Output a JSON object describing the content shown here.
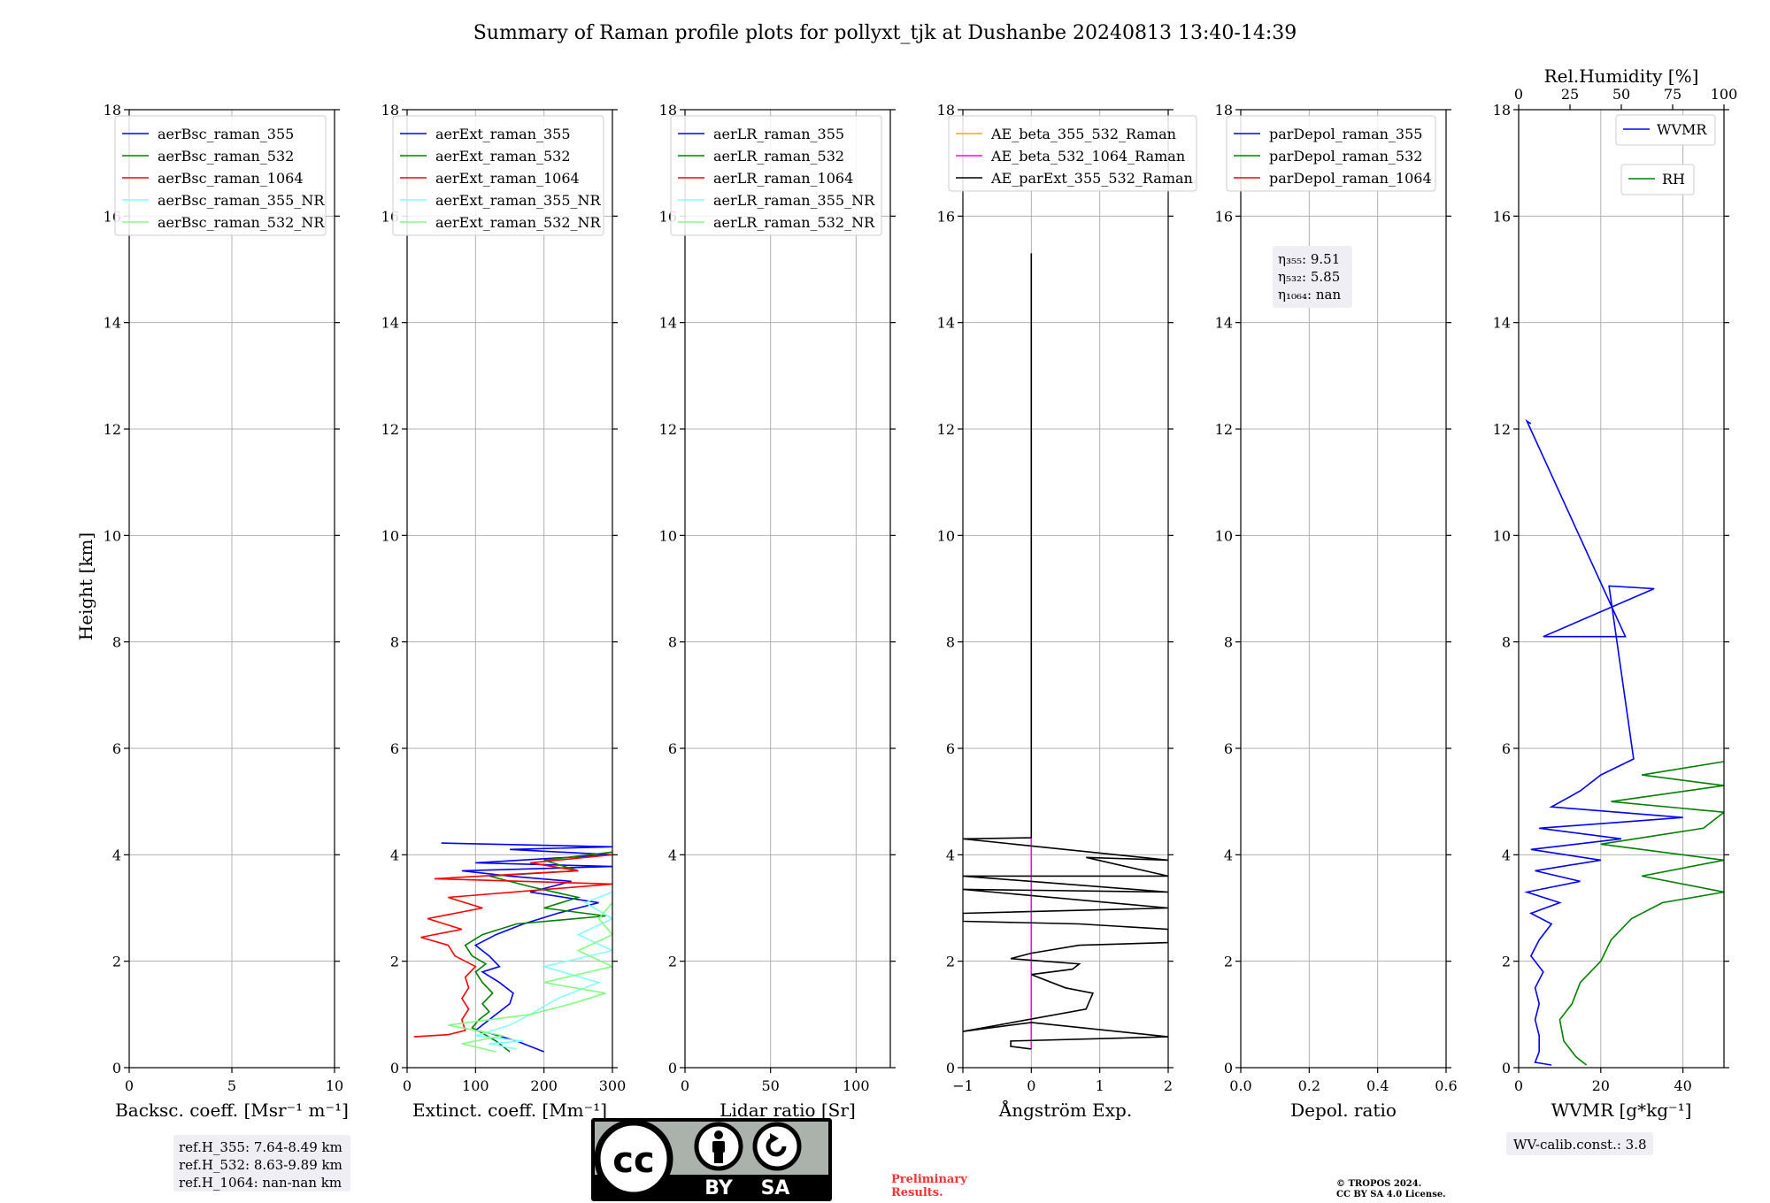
{
  "title": "Summary of Raman profile plots for pollyxt_tjk at Dushanbe 20240813 13:40-14:39",
  "shared_ylabel": "Height [km]",
  "colors": {
    "blue": "#0000ff",
    "green": "#008000",
    "red": "#ff0000",
    "cyan": "#80ffff",
    "lightgreen": "#80ff80",
    "orange": "#ffa500",
    "magenta": "#ff00ff",
    "black": "#000000",
    "grid": "#b0b0b0",
    "info_bg": "#eeeef4"
  },
  "chart_data": [
    {
      "type": "line",
      "id": "bsc",
      "xlabel": "Backsc. coeff. [Msr⁻¹ m⁻¹]",
      "ylabel": "Height [km]",
      "xlim": [
        0,
        10
      ],
      "ylim": [
        0,
        18
      ],
      "xticks": [
        0,
        5,
        10
      ],
      "xtick_labels": [
        "0",
        "5",
        "10"
      ],
      "yticks": [
        0,
        2,
        4,
        6,
        8,
        10,
        12,
        14,
        16,
        18
      ],
      "grid": true,
      "legend_position": "top-left",
      "series": [
        {
          "name": "aerBsc_raman_355",
          "color": "blue",
          "points": []
        },
        {
          "name": "aerBsc_raman_532",
          "color": "green",
          "points": []
        },
        {
          "name": "aerBsc_raman_1064",
          "color": "red",
          "points": []
        },
        {
          "name": "aerBsc_raman_355_NR",
          "color": "cyan",
          "points": []
        },
        {
          "name": "aerBsc_raman_532_NR",
          "color": "lightgreen",
          "points": []
        }
      ]
    },
    {
      "type": "line",
      "id": "ext",
      "xlabel": "Extinct. coeff. [Mm⁻¹]",
      "ylabel": "Height [km]",
      "xlim": [
        0,
        300
      ],
      "ylim": [
        0,
        18
      ],
      "xticks": [
        0,
        100,
        200,
        300
      ],
      "xtick_labels": [
        "0",
        "100",
        "200",
        "300"
      ],
      "yticks": [
        0,
        2,
        4,
        6,
        8,
        10,
        12,
        14,
        16,
        18
      ],
      "grid": true,
      "legend_position": "top-left",
      "series": [
        {
          "name": "aerExt_raman_355",
          "color": "blue",
          "points": [
            [
              200,
              0.3
            ],
            [
              160,
              0.5
            ],
            [
              120,
              0.65
            ],
            [
              100,
              0.7
            ],
            [
              115,
              0.85
            ],
            [
              130,
              1.0
            ],
            [
              150,
              1.2
            ],
            [
              155,
              1.4
            ],
            [
              135,
              1.6
            ],
            [
              110,
              1.8
            ],
            [
              135,
              1.9
            ],
            [
              120,
              2.1
            ],
            [
              100,
              2.3
            ],
            [
              130,
              2.5
            ],
            [
              170,
              2.7
            ],
            [
              220,
              2.9
            ],
            [
              280,
              3.1
            ],
            [
              180,
              3.3
            ],
            [
              240,
              3.5
            ],
            [
              150,
              3.6
            ],
            [
              80,
              3.7
            ],
            [
              300,
              3.78
            ],
            [
              100,
              3.85
            ],
            [
              300,
              4.0
            ],
            [
              150,
              4.1
            ],
            [
              300,
              4.15
            ],
            [
              50,
              4.22
            ]
          ]
        },
        {
          "name": "aerExt_raman_532",
          "color": "green",
          "points": [
            [
              150,
              0.3
            ],
            [
              130,
              0.5
            ],
            [
              110,
              0.65
            ],
            [
              95,
              0.75
            ],
            [
              105,
              0.9
            ],
            [
              120,
              1.05
            ],
            [
              110,
              1.2
            ],
            [
              125,
              1.4
            ],
            [
              110,
              1.6
            ],
            [
              100,
              1.8
            ],
            [
              115,
              1.95
            ],
            [
              95,
              2.1
            ],
            [
              85,
              2.3
            ],
            [
              110,
              2.5
            ],
            [
              160,
              2.7
            ],
            [
              290,
              2.85
            ],
            [
              200,
              3.0
            ],
            [
              250,
              3.2
            ],
            [
              180,
              3.4
            ],
            [
              120,
              3.6
            ],
            [
              250,
              3.7
            ],
            [
              200,
              3.9
            ],
            [
              300,
              4.05
            ]
          ]
        },
        {
          "name": "aerExt_raman_1064",
          "color": "red",
          "points": [
            [
              10,
              0.58
            ],
            [
              60,
              0.62
            ],
            [
              85,
              0.7
            ],
            [
              80,
              0.9
            ],
            [
              90,
              1.1
            ],
            [
              80,
              1.3
            ],
            [
              90,
              1.5
            ],
            [
              85,
              1.7
            ],
            [
              100,
              1.9
            ],
            [
              70,
              2.1
            ],
            [
              60,
              2.3
            ],
            [
              20,
              2.45
            ],
            [
              80,
              2.6
            ],
            [
              30,
              2.8
            ],
            [
              110,
              3.0
            ],
            [
              60,
              3.2
            ],
            [
              300,
              3.45
            ],
            [
              40,
              3.55
            ],
            [
              250,
              3.7
            ],
            [
              180,
              3.85
            ],
            [
              300,
              4.0
            ]
          ]
        },
        {
          "name": "aerExt_raman_355_NR",
          "color": "cyan",
          "points": [
            [
              160,
              0.35
            ],
            [
              120,
              0.45
            ],
            [
              170,
              0.5
            ],
            [
              100,
              0.6
            ],
            [
              150,
              0.8
            ],
            [
              180,
              1.0
            ],
            [
              220,
              1.3
            ],
            [
              280,
              1.6
            ],
            [
              200,
              1.9
            ],
            [
              300,
              2.2
            ],
            [
              250,
              2.5
            ],
            [
              300,
              2.8
            ],
            [
              260,
              3.1
            ],
            [
              300,
              3.3
            ]
          ]
        },
        {
          "name": "aerExt_raman_532_NR",
          "color": "lightgreen",
          "points": [
            [
              130,
              0.3
            ],
            [
              80,
              0.45
            ],
            [
              140,
              0.6
            ],
            [
              60,
              0.8
            ],
            [
              180,
              1.0
            ],
            [
              240,
              1.2
            ],
            [
              290,
              1.4
            ],
            [
              200,
              1.6
            ],
            [
              300,
              1.9
            ],
            [
              250,
              2.2
            ],
            [
              300,
              2.5
            ],
            [
              280,
              2.8
            ],
            [
              300,
              3.1
            ]
          ]
        }
      ]
    },
    {
      "type": "line",
      "id": "lr",
      "xlabel": "Lidar ratio [Sr]",
      "ylabel": "Height [km]",
      "xlim": [
        0,
        120
      ],
      "ylim": [
        0,
        18
      ],
      "xticks": [
        0,
        50,
        100
      ],
      "xtick_labels": [
        "0",
        "50",
        "100"
      ],
      "yticks": [
        0,
        2,
        4,
        6,
        8,
        10,
        12,
        14,
        16,
        18
      ],
      "grid": true,
      "legend_position": "top-left",
      "series": [
        {
          "name": "aerLR_raman_355",
          "color": "blue",
          "points": []
        },
        {
          "name": "aerLR_raman_532",
          "color": "green",
          "points": []
        },
        {
          "name": "aerLR_raman_1064",
          "color": "red",
          "points": []
        },
        {
          "name": "aerLR_raman_355_NR",
          "color": "cyan",
          "points": []
        },
        {
          "name": "aerLR_raman_532_NR",
          "color": "lightgreen",
          "points": []
        }
      ]
    },
    {
      "type": "line",
      "id": "ae",
      "xlabel": "Ångström Exp.",
      "ylabel": "Height [km]",
      "xlim": [
        -1,
        2
      ],
      "ylim": [
        0,
        18
      ],
      "xticks": [
        -1,
        0,
        1,
        2
      ],
      "xtick_labels": [
        "−1",
        "0",
        "1",
        "2"
      ],
      "yticks": [
        0,
        2,
        4,
        6,
        8,
        10,
        12,
        14,
        16,
        18
      ],
      "grid": true,
      "legend_position": "top-left",
      "series": [
        {
          "name": "AE_beta_355_532_Raman",
          "color": "orange",
          "points": []
        },
        {
          "name": "AE_beta_532_1064_Raman",
          "color": "magenta",
          "points": [
            [
              0,
              0.35
            ],
            [
              0,
              4.3
            ]
          ]
        },
        {
          "name": "AE_parExt_355_532_Raman",
          "color": "black",
          "points": [
            [
              0,
              0.35
            ],
            [
              -0.3,
              0.4
            ],
            [
              -0.3,
              0.5
            ],
            [
              2,
              0.58
            ],
            [
              0,
              0.85
            ],
            [
              -1,
              0.68
            ],
            [
              0.8,
              1.1
            ],
            [
              0.9,
              1.4
            ],
            [
              0.5,
              1.5
            ],
            [
              0,
              1.75
            ],
            [
              0.6,
              1.85
            ],
            [
              0.7,
              1.95
            ],
            [
              -0.3,
              2.05
            ],
            [
              0,
              2.15
            ],
            [
              0.7,
              2.3
            ],
            [
              2,
              2.35
            ],
            [
              2,
              2.6
            ],
            [
              0.7,
              2.7
            ],
            [
              -1,
              2.75
            ],
            [
              -1,
              2.9
            ],
            [
              2,
              3.0
            ],
            [
              -1,
              3.35
            ],
            [
              2,
              3.3
            ],
            [
              -1,
              3.6
            ],
            [
              2,
              3.6
            ],
            [
              0.8,
              3.95
            ],
            [
              2,
              3.9
            ],
            [
              -1,
              4.3
            ],
            [
              0,
              4.32
            ],
            [
              0,
              15.3
            ]
          ]
        }
      ]
    },
    {
      "type": "line",
      "id": "depol",
      "xlabel": "Depol. ratio",
      "ylabel": "Height [km]",
      "xlim": [
        0,
        0.6
      ],
      "ylim": [
        0,
        18
      ],
      "xticks": [
        0,
        0.2,
        0.4,
        0.6
      ],
      "xtick_labels": [
        "0.0",
        "0.2",
        "0.4",
        "0.6"
      ],
      "yticks": [
        0,
        2,
        4,
        6,
        8,
        10,
        12,
        14,
        16,
        18
      ],
      "grid": true,
      "legend_position": "top-left",
      "series": [
        {
          "name": "parDepol_raman_355",
          "color": "blue",
          "points": []
        },
        {
          "name": "parDepol_raman_532",
          "color": "green",
          "points": []
        },
        {
          "name": "parDepol_raman_1064",
          "color": "red",
          "points": []
        }
      ]
    },
    {
      "type": "line",
      "id": "wv",
      "xlabel": "WVMR [g*kg⁻¹]",
      "ylabel": "Height [km]",
      "xlim": [
        0,
        50
      ],
      "ylim": [
        0,
        18
      ],
      "xticks": [
        0,
        20,
        40
      ],
      "xtick_labels": [
        "0",
        "20",
        "40"
      ],
      "yticks": [
        0,
        2,
        4,
        6,
        8,
        10,
        12,
        14,
        16,
        18
      ],
      "grid": true,
      "top_axis": {
        "label": "Rel.Humidity [%]",
        "lim": [
          0,
          100
        ],
        "ticks": [
          0,
          25,
          50,
          75,
          100
        ]
      },
      "legend_position": "top-right",
      "series": [
        {
          "name": "WVMR",
          "color": "blue",
          "axis": "bottom",
          "points": [
            [
              8,
              0.05
            ],
            [
              4,
              0.1
            ],
            [
              5,
              0.3
            ],
            [
              5,
              0.6
            ],
            [
              4,
              0.9
            ],
            [
              5,
              1.2
            ],
            [
              4,
              1.5
            ],
            [
              6,
              1.8
            ],
            [
              3,
              2.1
            ],
            [
              5,
              2.4
            ],
            [
              8,
              2.7
            ],
            [
              3,
              2.9
            ],
            [
              10,
              3.1
            ],
            [
              2,
              3.3
            ],
            [
              15,
              3.5
            ],
            [
              4,
              3.7
            ],
            [
              20,
              3.9
            ],
            [
              3,
              4.1
            ],
            [
              25,
              4.3
            ],
            [
              5,
              4.5
            ],
            [
              40,
              4.7
            ],
            [
              8,
              4.9
            ],
            [
              15,
              5.2
            ],
            [
              20,
              5.5
            ],
            [
              28,
              5.8
            ],
            [
              22,
              9.05
            ],
            [
              33,
              9.0
            ],
            [
              6,
              8.1
            ],
            [
              26,
              8.1
            ],
            [
              2,
              12.15
            ],
            [
              3,
              12.1
            ]
          ]
        },
        {
          "name": "RH",
          "color": "green",
          "axis": "top",
          "points": [
            [
              33,
              0.05
            ],
            [
              28,
              0.2
            ],
            [
              22,
              0.5
            ],
            [
              20,
              0.9
            ],
            [
              26,
              1.2
            ],
            [
              30,
              1.6
            ],
            [
              40,
              2.0
            ],
            [
              45,
              2.4
            ],
            [
              55,
              2.8
            ],
            [
              70,
              3.1
            ],
            [
              100,
              3.3
            ],
            [
              60,
              3.6
            ],
            [
              100,
              3.9
            ],
            [
              40,
              4.2
            ],
            [
              90,
              4.5
            ],
            [
              100,
              4.8
            ],
            [
              45,
              5.0
            ],
            [
              100,
              5.3
            ],
            [
              60,
              5.5
            ],
            [
              100,
              5.75
            ]
          ]
        }
      ]
    }
  ],
  "annotations": {
    "eta_355": "η₃₅₅: 9.51",
    "eta_532": "η₅₃₂: 5.85",
    "eta_1064": "η₁₀₆₄: nan",
    "ref_355": "ref.H_355: 7.64-8.49 km",
    "ref_532": "ref.H_532: 8.63-9.89 km",
    "ref_1064": "ref.H_1064: nan-nan km",
    "wv_calib": "WV-calib.const.: 3.8",
    "preliminary_1": "Preliminary",
    "preliminary_2": "Results.",
    "copyright_1": "© TROPOS 2024.",
    "copyright_2": "CC BY SA 4.0 License."
  },
  "license_badge": {
    "cc": "cc",
    "by": "BY",
    "sa": "SA"
  }
}
